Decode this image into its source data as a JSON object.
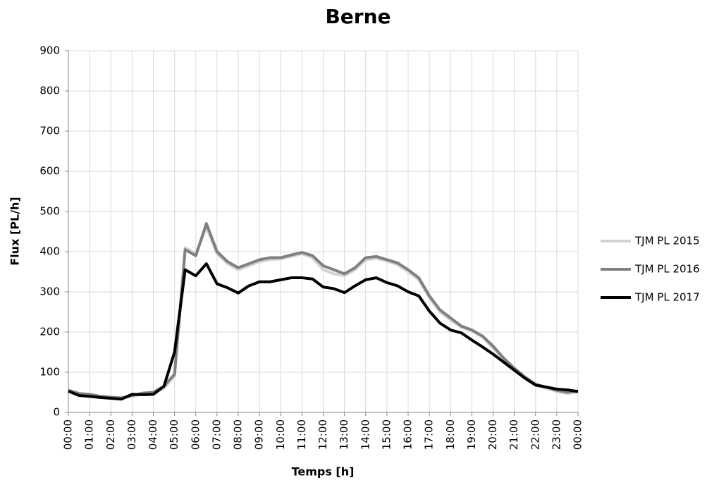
{
  "chart_data": {
    "type": "line",
    "title": "Berne",
    "x_label": "Temps [h]",
    "y_label": "Flux [PL/h]",
    "categories": [
      "00:00",
      null,
      "01:00",
      null,
      "02:00",
      null,
      "03:00",
      null,
      "04:00",
      null,
      "05:00",
      null,
      "06:00",
      null,
      "07:00",
      null,
      "08:00",
      null,
      "09:00",
      null,
      "10:00",
      null,
      "11:00",
      null,
      "12:00",
      null,
      "13:00",
      null,
      "14:00",
      null,
      "15:00",
      null,
      "16:00",
      null,
      "17:00",
      null,
      "18:00",
      null,
      "19:00",
      null,
      "20:00",
      null,
      "21:00",
      null,
      "22:00",
      null,
      "23:00",
      null,
      "00:00"
    ],
    "series": [
      {
        "name": "TJM PL 2015",
        "color": "#d3d3d3",
        "values": [
          52,
          45,
          43,
          38,
          37,
          35,
          40,
          45,
          48,
          60,
          90,
          410,
          395,
          460,
          395,
          370,
          355,
          365,
          375,
          380,
          382,
          388,
          395,
          385,
          355,
          345,
          340,
          355,
          380,
          383,
          377,
          368,
          350,
          330,
          285,
          250,
          230,
          212,
          203,
          188,
          160,
          132,
          108,
          86,
          68,
          60,
          52,
          47,
          52
        ]
      },
      {
        "name": "TJM PL 2016",
        "color": "#808080",
        "values": [
          55,
          47,
          45,
          40,
          38,
          36,
          42,
          48,
          50,
          65,
          95,
          405,
          390,
          470,
          400,
          375,
          360,
          370,
          380,
          385,
          385,
          392,
          398,
          390,
          365,
          355,
          345,
          360,
          385,
          388,
          380,
          372,
          355,
          335,
          290,
          255,
          235,
          215,
          205,
          190,
          165,
          135,
          110,
          88,
          70,
          63,
          55,
          50,
          53
        ]
      },
      {
        "name": "TJM PL 2017",
        "color": "#000000",
        "values": [
          53,
          42,
          40,
          37,
          35,
          33,
          45,
          44,
          45,
          65,
          150,
          355,
          340,
          370,
          320,
          310,
          297,
          315,
          325,
          325,
          330,
          335,
          335,
          332,
          312,
          308,
          298,
          315,
          330,
          335,
          323,
          315,
          300,
          290,
          252,
          222,
          205,
          198,
          180,
          163,
          145,
          125,
          105,
          85,
          68,
          63,
          58,
          56,
          52
        ]
      }
    ],
    "ylim": [
      0,
      900
    ],
    "yticks": [
      0,
      100,
      200,
      300,
      400,
      500,
      600,
      700,
      800,
      900
    ],
    "grid": true,
    "legend": "right"
  }
}
